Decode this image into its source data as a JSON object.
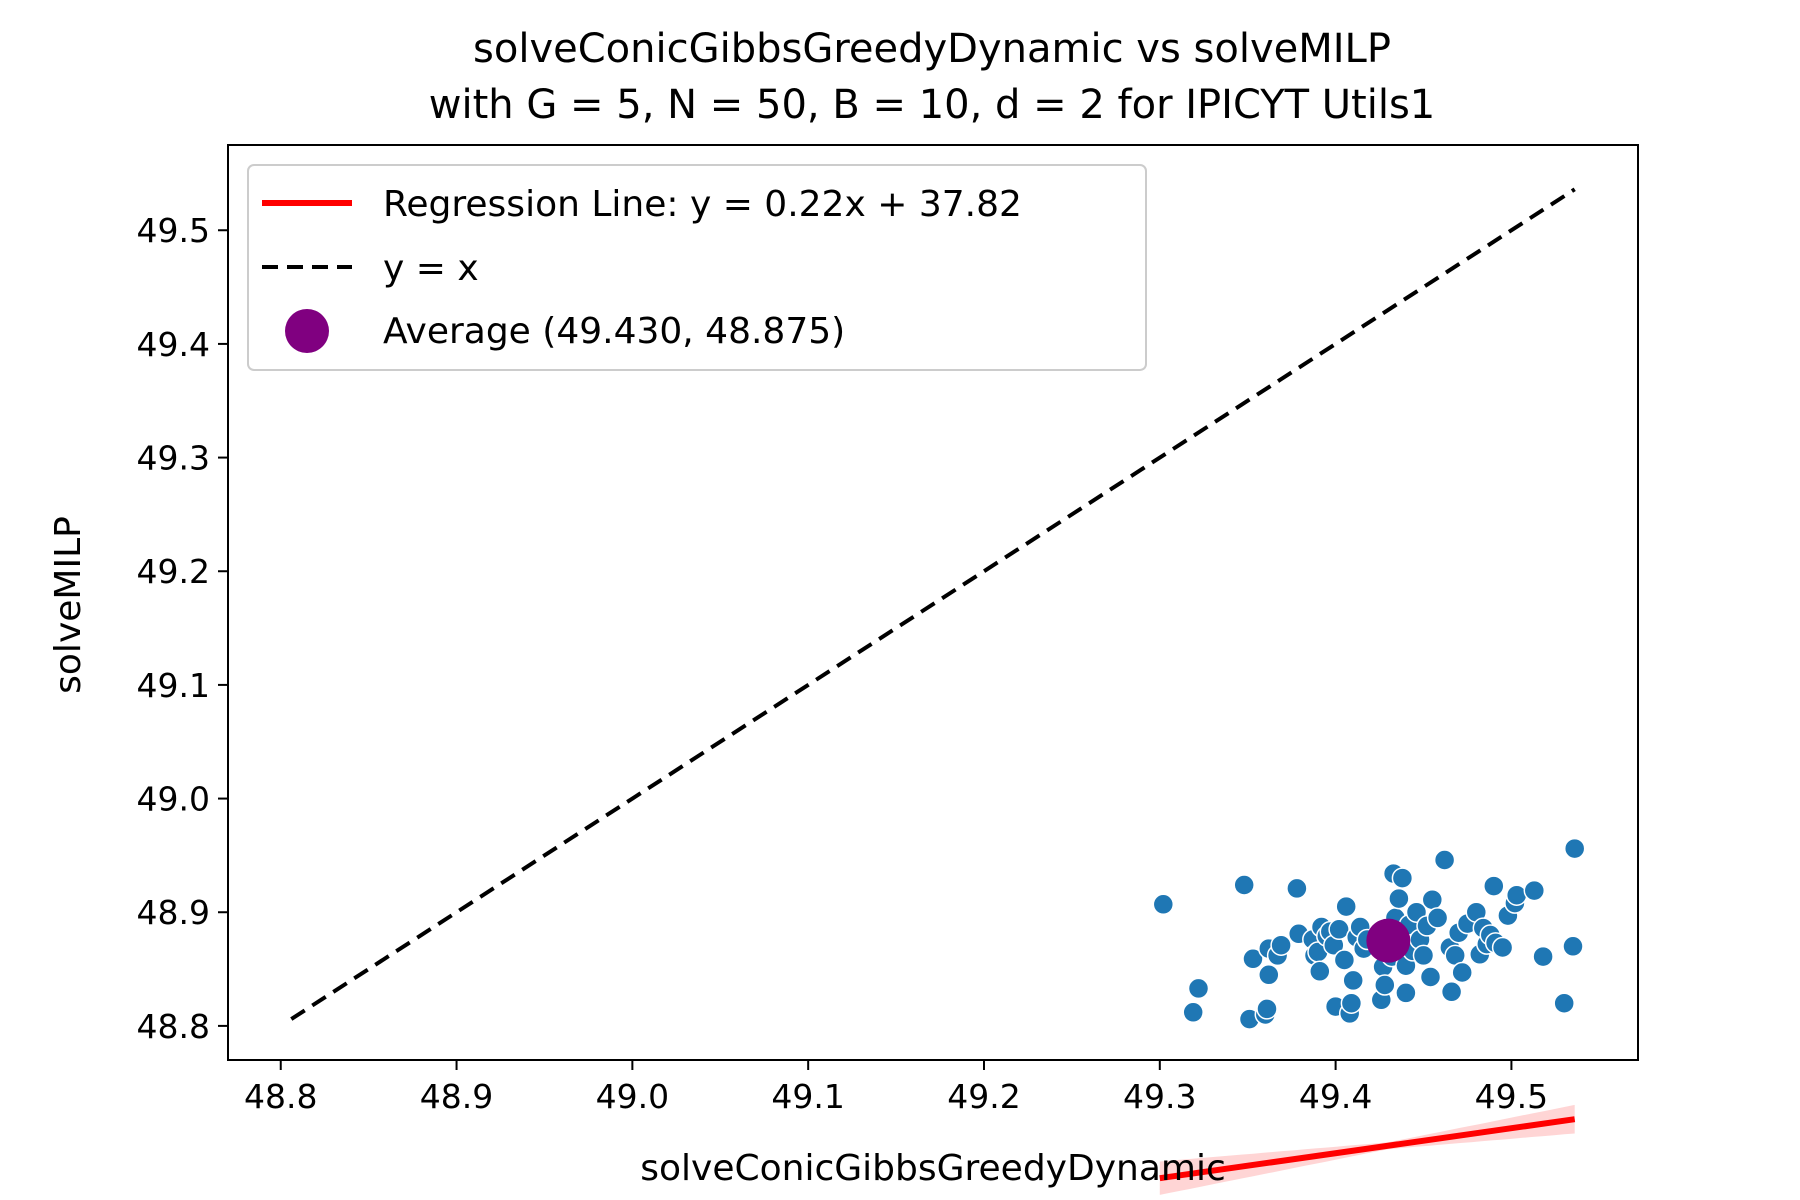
{
  "chart_data": {
    "type": "scatter",
    "title_line1": "solveConicGibbsGreedyDynamic vs solveMILP",
    "title_line2": "with G = 5, N = 50, B = 10, d = 2 for IPICYT Utils1",
    "xlabel": "solveConicGibbsGreedyDynamic",
    "ylabel": "solveMILP",
    "xlim": [
      48.77,
      49.572
    ],
    "ylim": [
      48.77,
      49.575
    ],
    "xticks": [
      "48.8",
      "48.9",
      "49.0",
      "49.1",
      "49.2",
      "49.3",
      "49.4",
      "49.5"
    ],
    "yticks": [
      "48.8",
      "48.9",
      "49.0",
      "49.1",
      "49.2",
      "49.3",
      "49.4",
      "49.5"
    ],
    "legend_position": "upper-left",
    "legend": {
      "regression_label": "Regression Line: y = 0.22x + 37.82",
      "identity_label": "y = x",
      "average_label": "Average (49.430, 48.875)"
    },
    "colors": {
      "points": "#1f77b4",
      "regression": "#ff0000",
      "confidence_band": "#ffb3b3",
      "identity": "#000000",
      "average": "#800080"
    },
    "regression": {
      "slope": 0.22,
      "intercept": 37.82,
      "x_range": [
        49.3,
        49.536
      ]
    },
    "identity_line": {
      "x_range": [
        48.806,
        49.536
      ]
    },
    "average_point": {
      "x": 49.43,
      "y": 48.875
    },
    "series": [
      {
        "points": [
          [
            49.302,
            48.907
          ],
          [
            49.319,
            48.812
          ],
          [
            49.322,
            48.833
          ],
          [
            49.348,
            48.924
          ],
          [
            49.351,
            48.806
          ],
          [
            49.353,
            48.859
          ],
          [
            49.36,
            48.81
          ],
          [
            49.361,
            48.815
          ],
          [
            49.362,
            48.845
          ],
          [
            49.362,
            48.868
          ],
          [
            49.367,
            48.862
          ],
          [
            49.369,
            48.871
          ],
          [
            49.378,
            48.921
          ],
          [
            49.379,
            48.881
          ],
          [
            49.387,
            48.876
          ],
          [
            49.388,
            48.862
          ],
          [
            49.39,
            48.865
          ],
          [
            49.391,
            48.848
          ],
          [
            49.392,
            48.887
          ],
          [
            49.395,
            48.879
          ],
          [
            49.397,
            48.883
          ],
          [
            49.399,
            48.871
          ],
          [
            49.4,
            48.817
          ],
          [
            49.402,
            48.885
          ],
          [
            49.405,
            48.858
          ],
          [
            49.406,
            48.905
          ],
          [
            49.408,
            48.811
          ],
          [
            49.409,
            48.82
          ],
          [
            49.41,
            48.84
          ],
          [
            49.412,
            48.878
          ],
          [
            49.414,
            48.887
          ],
          [
            49.416,
            48.868
          ],
          [
            49.418,
            48.876
          ],
          [
            49.425,
            48.874
          ],
          [
            49.426,
            48.823
          ],
          [
            49.427,
            48.852
          ],
          [
            49.428,
            48.836
          ],
          [
            49.43,
            48.885
          ],
          [
            49.432,
            48.861
          ],
          [
            49.433,
            48.934
          ],
          [
            49.434,
            48.895
          ],
          [
            49.436,
            48.912
          ],
          [
            49.438,
            48.93
          ],
          [
            49.44,
            48.829
          ],
          [
            49.44,
            48.853
          ],
          [
            49.442,
            48.889
          ],
          [
            49.444,
            48.866
          ],
          [
            49.446,
            48.9
          ],
          [
            49.448,
            48.876
          ],
          [
            49.45,
            48.862
          ],
          [
            49.452,
            48.888
          ],
          [
            49.454,
            48.843
          ],
          [
            49.455,
            48.911
          ],
          [
            49.458,
            48.895
          ],
          [
            49.462,
            48.946
          ],
          [
            49.465,
            48.869
          ],
          [
            49.466,
            48.83
          ],
          [
            49.468,
            48.862
          ],
          [
            49.47,
            48.882
          ],
          [
            49.472,
            48.847
          ],
          [
            49.475,
            48.89
          ],
          [
            49.48,
            48.9
          ],
          [
            49.482,
            48.863
          ],
          [
            49.484,
            48.886
          ],
          [
            49.486,
            48.872
          ],
          [
            49.488,
            48.88
          ],
          [
            49.49,
            48.923
          ],
          [
            49.491,
            48.873
          ],
          [
            49.495,
            48.869
          ],
          [
            49.498,
            48.897
          ],
          [
            49.502,
            48.908
          ],
          [
            49.503,
            48.915
          ],
          [
            49.513,
            48.919
          ],
          [
            49.518,
            48.861
          ],
          [
            49.53,
            48.82
          ],
          [
            49.535,
            48.87
          ],
          [
            49.536,
            48.956
          ]
        ]
      }
    ]
  }
}
